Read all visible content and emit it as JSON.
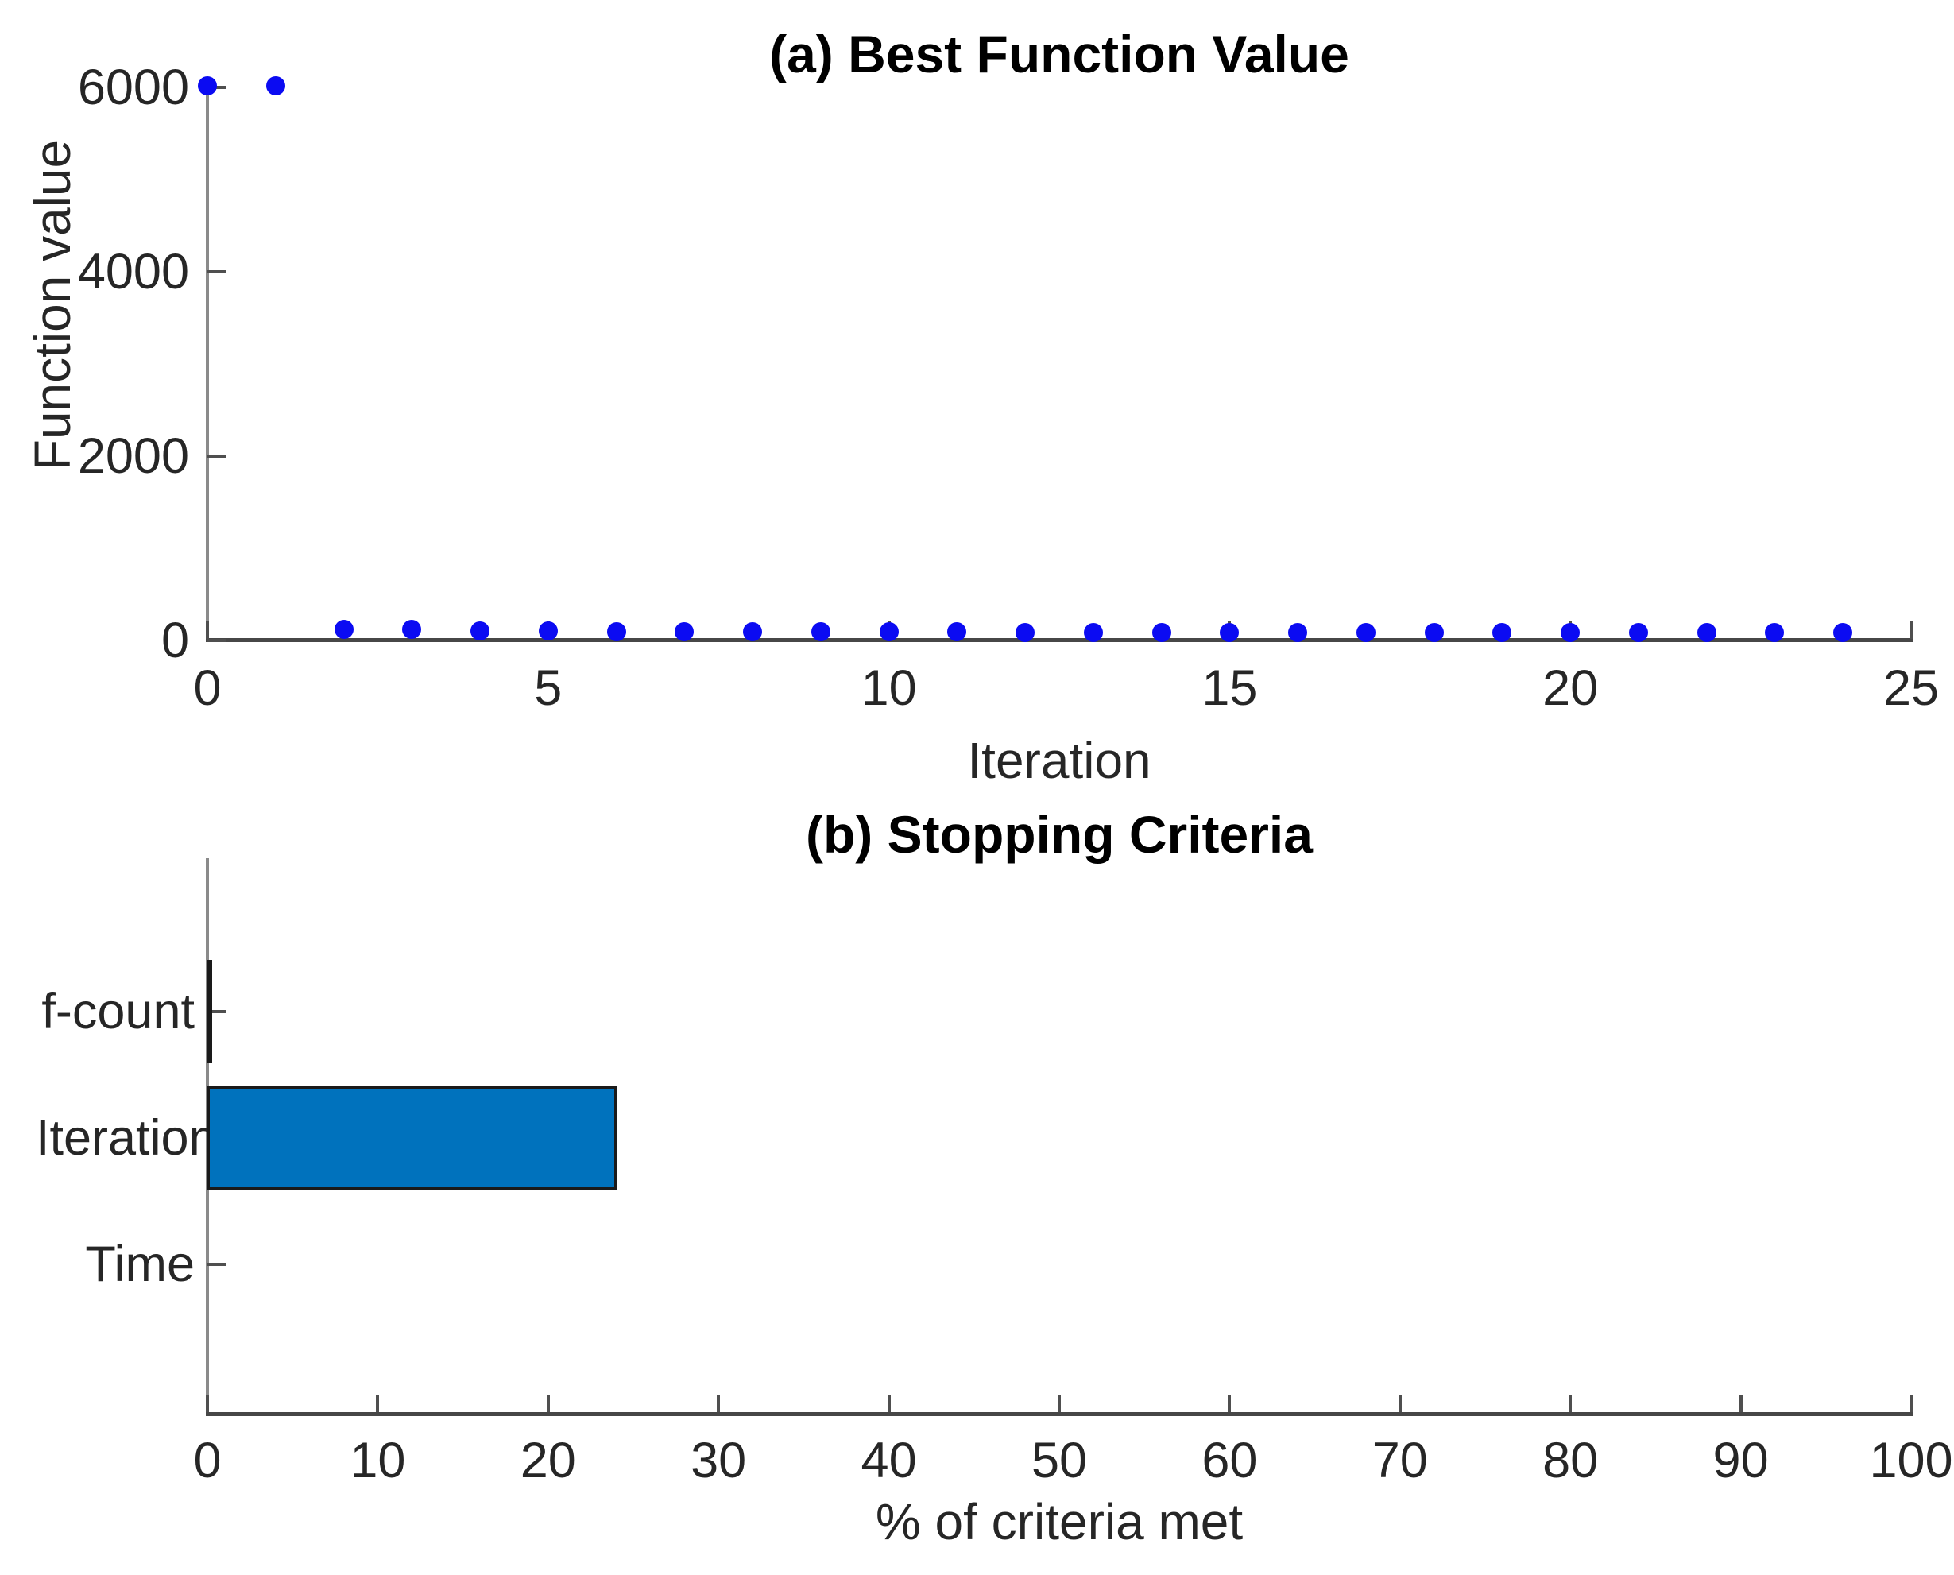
{
  "figure": {
    "background": "#ffffff",
    "colors": {
      "y_axis_line": "#8a8a8a",
      "x_axis_line": "#474747",
      "tick_mark": "#4f4f4f",
      "text": "#262626",
      "title_text": "#000000"
    }
  },
  "chart_data": [
    {
      "id": "best_function_value",
      "type": "scatter",
      "title": "(a) Best Function Value",
      "xlabel": "Iteration",
      "ylabel": "Function value",
      "xlim": [
        0,
        25
      ],
      "ylim": [
        0,
        6000
      ],
      "xticks": [
        0,
        5,
        10,
        15,
        20,
        25
      ],
      "yticks": [
        0,
        2000,
        4000,
        6000
      ],
      "grid": false,
      "legend": null,
      "marker": "filled-circle",
      "marker_color": "#0b0bf2",
      "points": {
        "x": [
          0,
          1,
          2,
          3,
          4,
          5,
          6,
          7,
          8,
          9,
          10,
          11,
          12,
          13,
          14,
          15,
          16,
          17,
          18,
          19,
          20,
          21,
          22,
          23,
          24
        ],
        "y": [
          6020,
          6020,
          120,
          120,
          100,
          100,
          95,
          95,
          95,
          92,
          92,
          92,
          90,
          90,
          90,
          90,
          90,
          88,
          88,
          88,
          88,
          86,
          86,
          86,
          85
        ]
      }
    },
    {
      "id": "stopping_criteria",
      "type": "bar",
      "orientation": "horizontal",
      "title": "(b) Stopping Criteria",
      "xlabel": "% of criteria met",
      "ylabel": "",
      "categories": [
        "f-count",
        "Iteration",
        "Time"
      ],
      "values": [
        0.3,
        24,
        0
      ],
      "xlim": [
        0,
        100
      ],
      "xticks": [
        0,
        10,
        20,
        30,
        40,
        50,
        60,
        70,
        80,
        90,
        100
      ],
      "grid": false,
      "legend": null,
      "bar_color": "#0072bd",
      "bar_edge_color": "#1a1a1a"
    }
  ]
}
